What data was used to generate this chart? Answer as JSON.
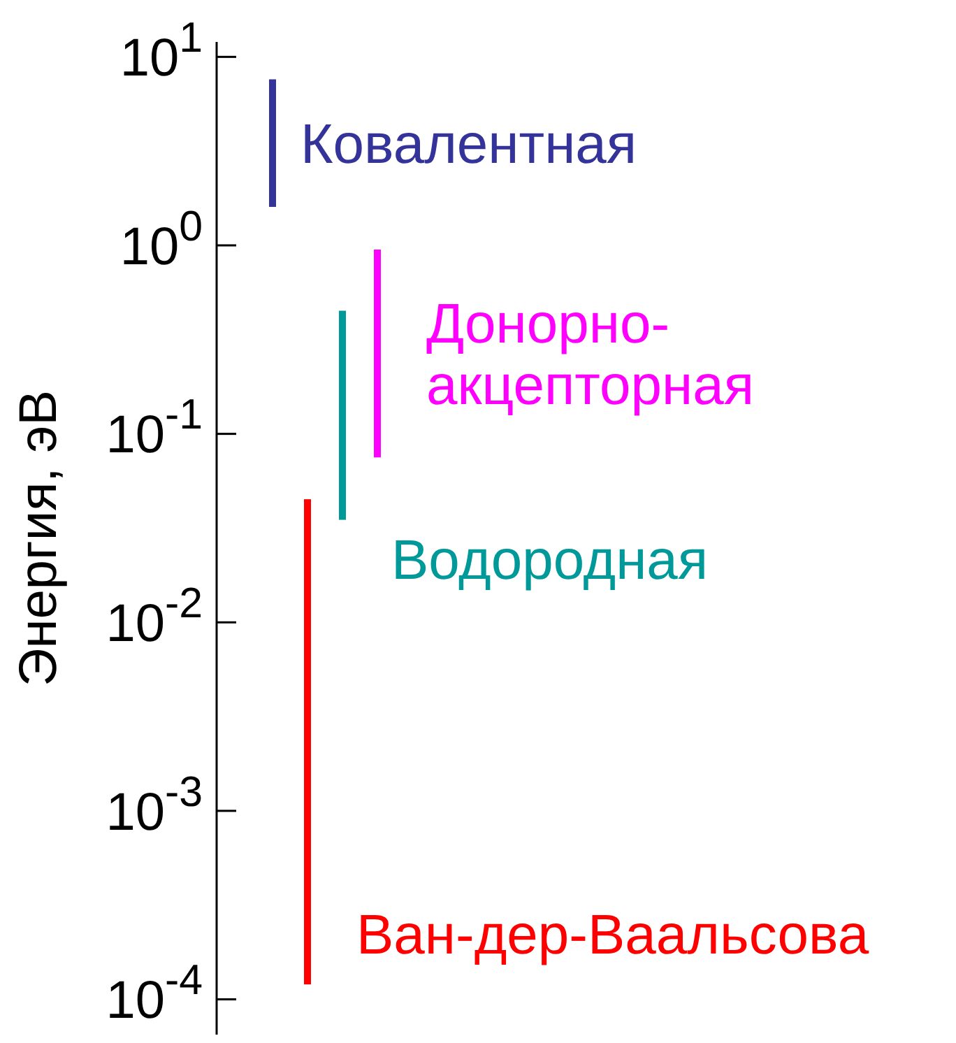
{
  "chart_data": {
    "type": "bar",
    "ylabel": "Энергия, эВ",
    "log": true,
    "categories": [
      null,
      null,
      null,
      null
    ],
    "base": [
      1.6,
      0.00012,
      0.035,
      0.075
    ],
    "values": [
      6,
      0.04488,
      0.415,
      0.875
    ],
    "colors": [
      "#333399",
      "#ff0000",
      "#009999",
      "#ff00ff"
    ],
    "annotations": [
      "Ковалентная",
      "Ван-дер-Ваальсова",
      "Водородная",
      "Донорно-акцепторная"
    ],
    "ylim": [
      6.5e-05,
      12
    ],
    "yticks": [
      {
        "value": 10,
        "label": "10$^{1}$"
      },
      {
        "value": 1,
        "label": "10$^{0}$"
      },
      {
        "value": 0.1,
        "label": "10$^{-1}$"
      },
      {
        "value": 0.01,
        "label": "10$^{-2}$"
      },
      {
        "value": 0.001,
        "label": "10$^{-3}$"
      },
      {
        "value": 0.0001,
        "label": "10$^{-4}$"
      }
    ]
  }
}
